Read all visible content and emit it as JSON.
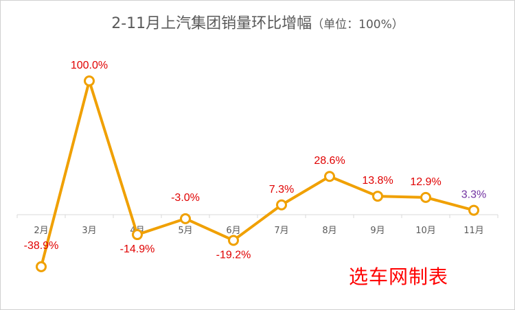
{
  "chart_data": {
    "type": "line",
    "title": "2-11月上汽集团销量环比增幅",
    "subtitle": "（单位：100%）",
    "categories": [
      "2月",
      "3月",
      "4月",
      "5月",
      "6月",
      "7月",
      "8月",
      "9月",
      "10月",
      "11月"
    ],
    "series": [
      {
        "values": [
          -38.9,
          100.0,
          -14.9,
          -3.0,
          -19.2,
          7.3,
          28.6,
          13.8,
          12.9,
          3.3
        ],
        "data_labels": [
          "-38.9%",
          "100.0%",
          "-14.9%",
          "-3.0%",
          "-19.2%",
          "7.3%",
          "28.6%",
          "13.8%",
          "12.9%",
          "3.3%"
        ],
        "color": "#f0a000"
      }
    ],
    "ylim": [
      -45,
      105
    ],
    "grid": false,
    "label_color": "#e00000",
    "last_label_color": "#7030a0",
    "axis_color": "#d9d9d9"
  },
  "watermark": "选车网制表"
}
